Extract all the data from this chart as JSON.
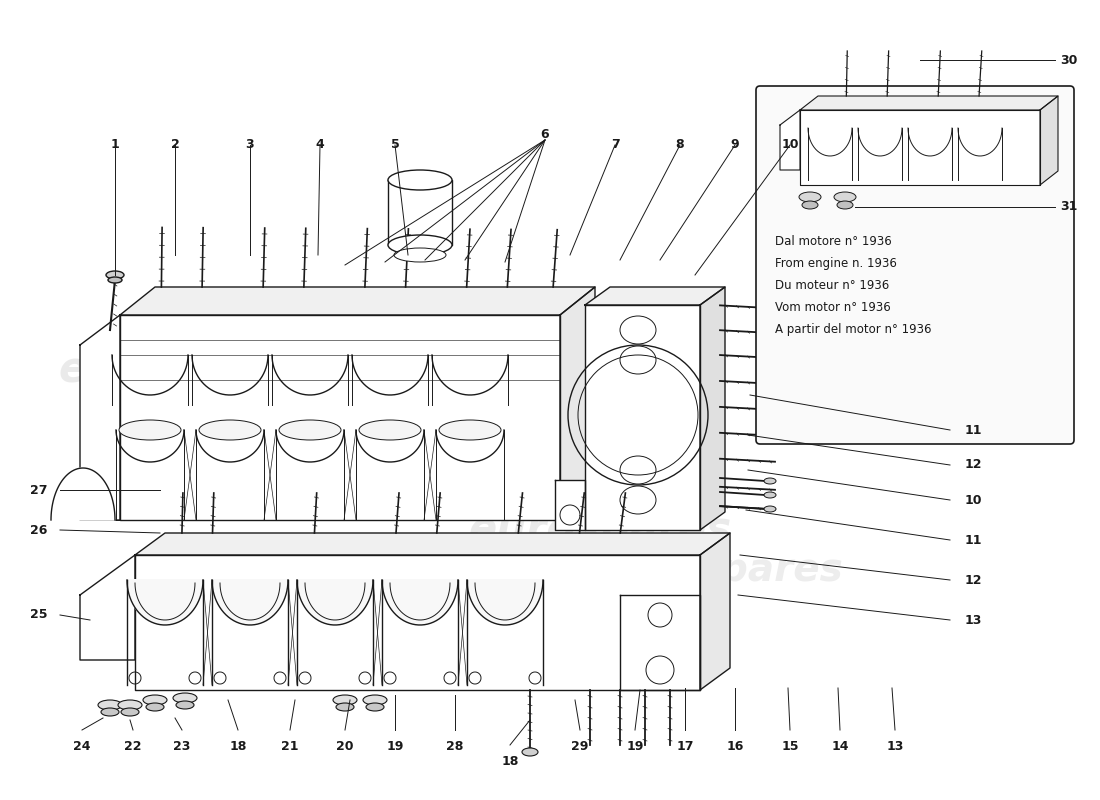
{
  "bg_color": "#ffffff",
  "watermark_color": "#cccccc",
  "watermark_text": "eurospares",
  "line_color": "#1a1a1a",
  "inset_text": [
    "Dal motore n° 1936",
    "From engine n. 1936",
    "Du moteur n° 1936",
    "Vom motor n° 1936",
    "A partir del motor n° 1936"
  ]
}
